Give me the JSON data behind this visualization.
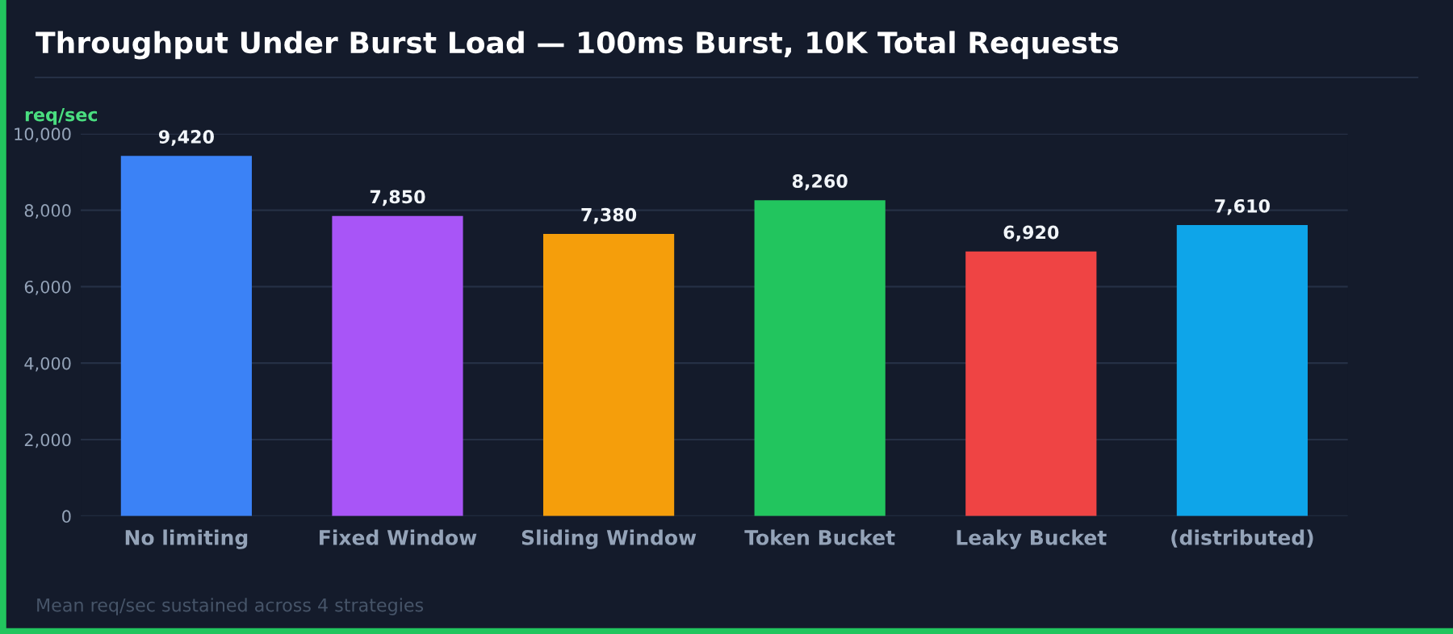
{
  "chart_data": {
    "type": "bar",
    "title": "Throughput Under Burst Load — 100ms Burst, 10K Total Requests",
    "ylabel": "req/sec",
    "categories": [
      "No limiting",
      "Fixed Window",
      "Sliding Window",
      "Token Bucket",
      "Leaky Bucket",
      "(distributed)"
    ],
    "values": [
      9420,
      7850,
      7380,
      8260,
      6920,
      7610
    ],
    "colors": [
      "#3b82f6",
      "#a855f7",
      "#f59e0b",
      "#22c55e",
      "#ef4444",
      "#0ea5e9"
    ],
    "value_labels": [
      "9,420",
      "7,850",
      "7,380",
      "8,260",
      "6,920",
      "7,610"
    ],
    "ylim": [
      0,
      10000
    ],
    "yticks": [
      0,
      {
        "value": 2000,
        "label": "2,000"
      },
      {
        "value": 4000,
        "label": "4,000"
      },
      {
        "value": 6000,
        "label": "6,000"
      },
      {
        "value": 8000,
        "label": "8,000"
      },
      {
        "value": 10000,
        "label": "10,000"
      }
    ],
    "grid": "y",
    "legend": false,
    "annotations": [
      "Mean req/sec sustained across 4 strategies"
    ]
  }
}
